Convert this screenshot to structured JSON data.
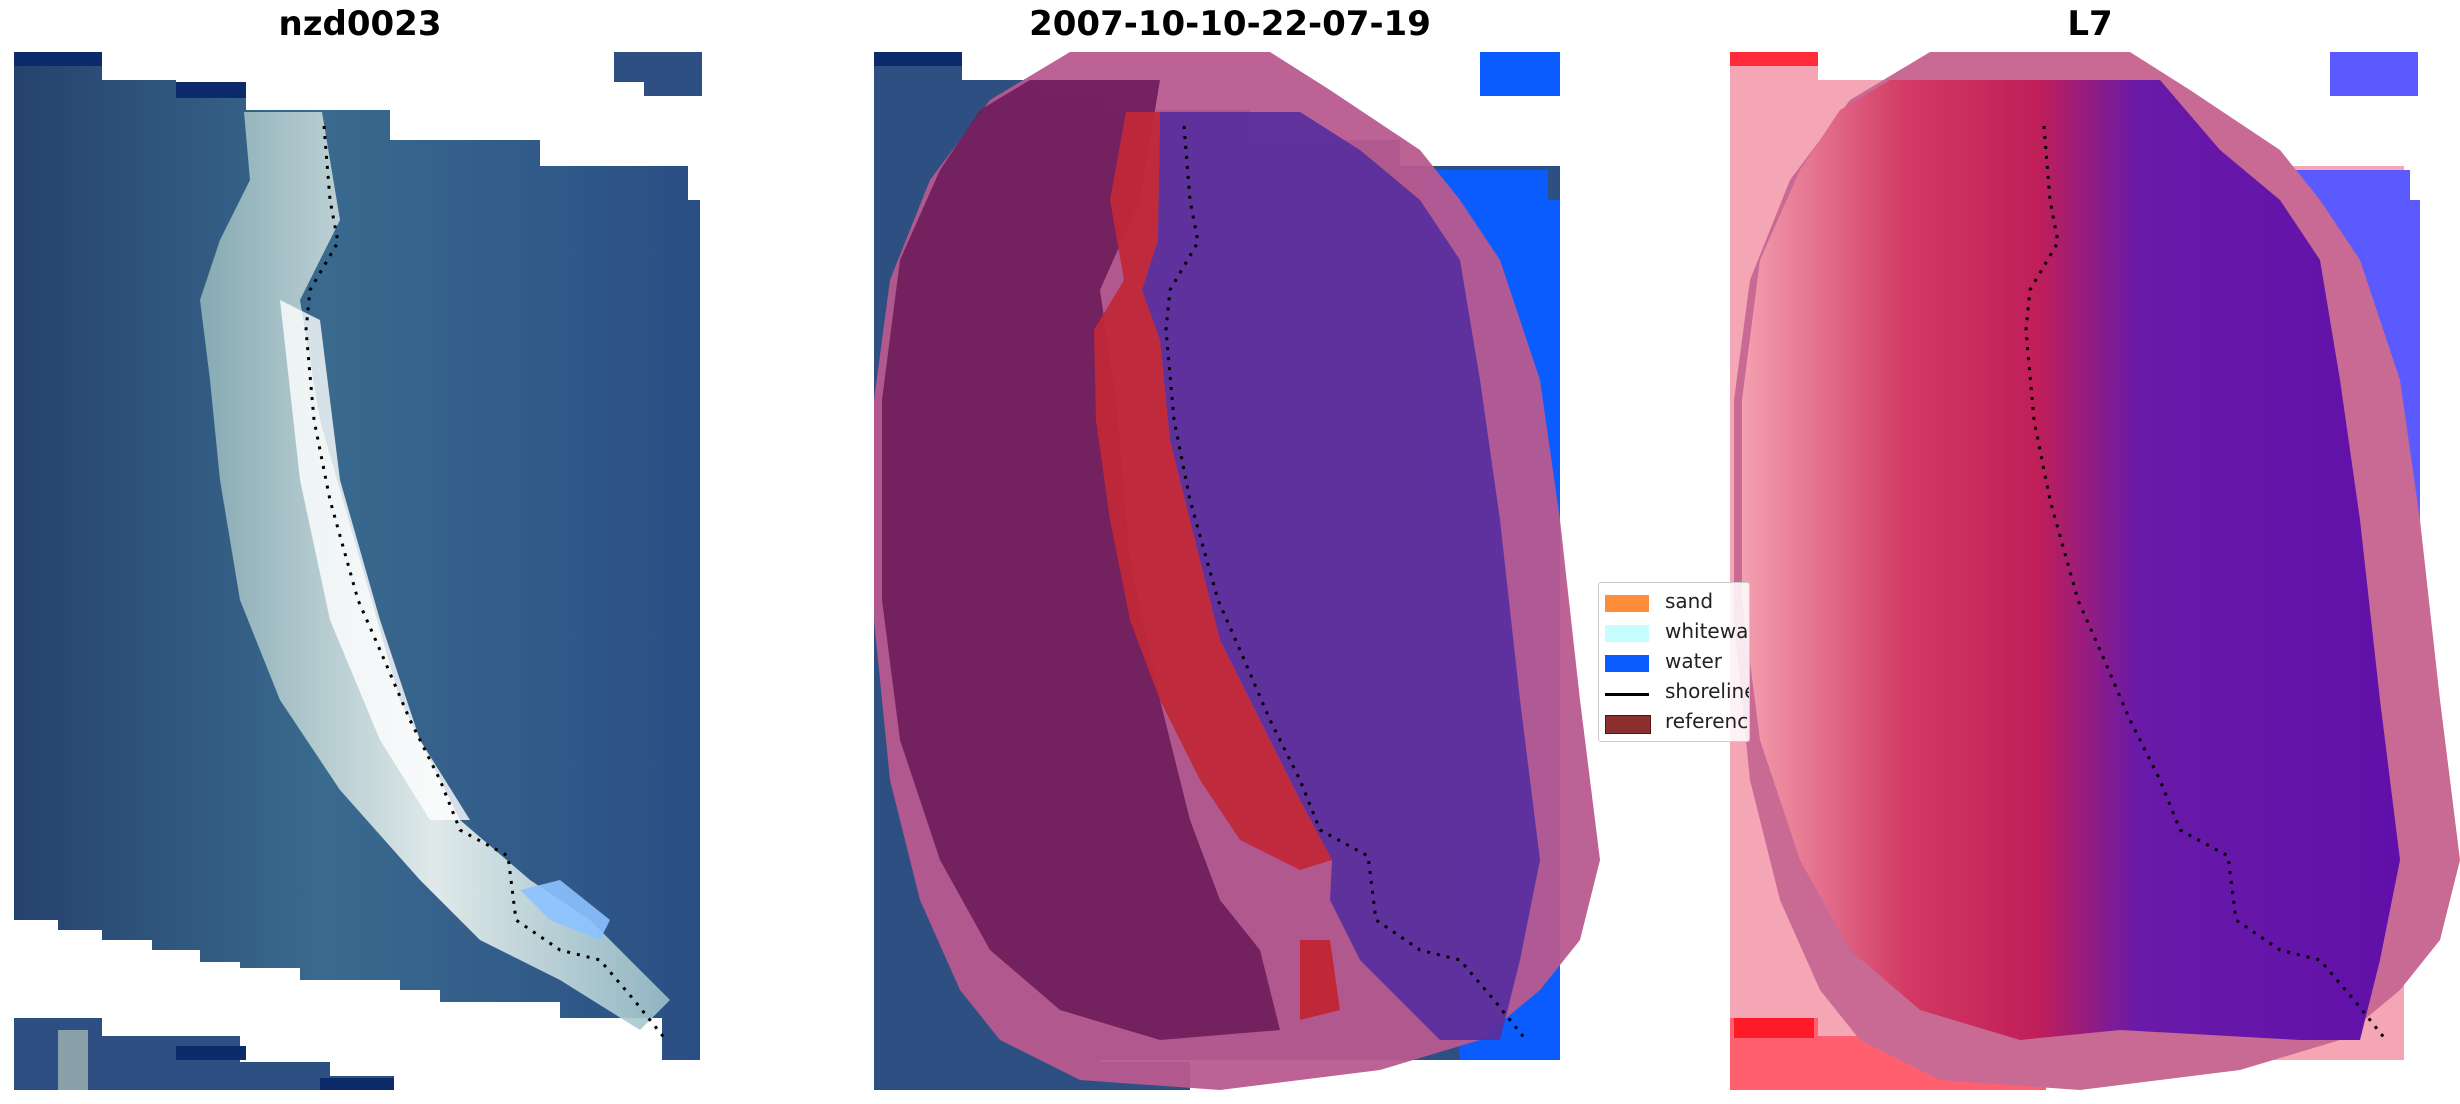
{
  "panels": [
    {
      "title": "nzd0023",
      "kind": "rgb"
    },
    {
      "title": "2007-10-10-22-07-19",
      "kind": "classified"
    },
    {
      "title": "L7",
      "kind": "index"
    }
  ],
  "legend": {
    "items": [
      {
        "label": "sand",
        "color": "#ff8c3a",
        "shape": "patch"
      },
      {
        "label": "whitewater",
        "color": "#c8fdfd",
        "shape": "patch"
      },
      {
        "label": "water",
        "color": "#0a5cff",
        "shape": "patch"
      },
      {
        "label": "shoreline",
        "color": "#000000",
        "shape": "line"
      },
      {
        "label": "reference",
        "color": "#8b2e2e",
        "shape": "patch"
      }
    ]
  },
  "colors": {
    "ocean": "#2d4f82",
    "surf": "#e6efef",
    "land_overlay": "#b5185e",
    "buffer": "#b85a8e",
    "sand_class": "#c02838",
    "water_class": "#5a2f9e",
    "water_blue": "#0a5cff",
    "index_red": "#d02854",
    "index_purple": "#6a1aa8",
    "index_blue": "#4a4aff"
  }
}
